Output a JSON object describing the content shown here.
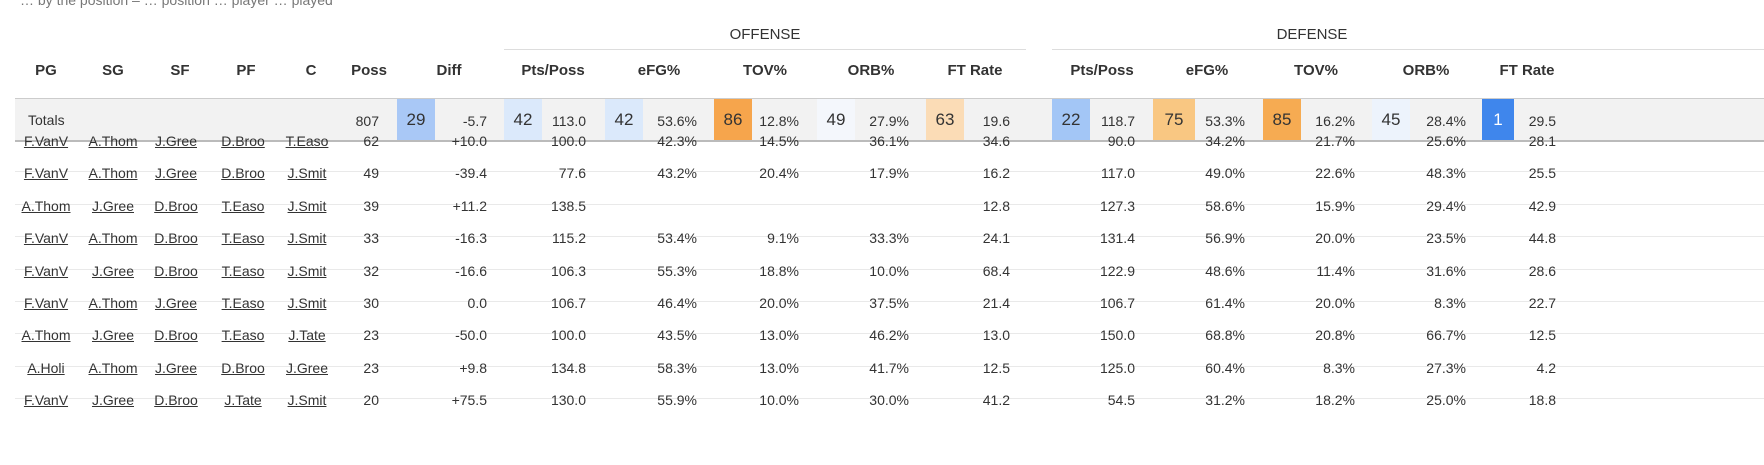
{
  "intro_text": "… by the position – … position … player … played",
  "groups": {
    "offense": "OFFENSE",
    "defense": "DEFENSE"
  },
  "headers": {
    "pg": "PG",
    "sg": "SG",
    "sf": "SF",
    "pf": "PF",
    "c": "C",
    "poss": "Poss",
    "diff": "Diff",
    "o_pts": "Pts/Poss",
    "o_efg": "eFG%",
    "o_tov": "TOV%",
    "o_orb": "ORB%",
    "o_ft": "FT Rate",
    "d_pts": "Pts/Poss",
    "d_efg": "eFG%",
    "d_tov": "TOV%",
    "d_orb": "ORB%",
    "d_ft": "FT Rate"
  },
  "totals": {
    "label": "Totals",
    "poss": "807",
    "diff_rank": "29",
    "diff": "-5.7",
    "o_pts_rank": "42",
    "o_pts": "113.0",
    "o_efg_rank": "42",
    "o_efg": "53.6%",
    "o_tov_rank": "86",
    "o_tov": "12.8%",
    "o_orb_rank": "49",
    "o_orb": "27.9%",
    "o_ft_rank": "63",
    "o_ft": "19.6",
    "d_pts_rank": "22",
    "d_pts": "118.7",
    "d_efg_rank": "75",
    "d_efg": "53.3%",
    "d_tov_rank": "85",
    "d_tov": "16.2%",
    "d_orb_rank": "45",
    "d_orb": "28.4%",
    "d_ft_rank": "1",
    "d_ft": "29.5"
  },
  "rank_colors": {
    "diff": "#a9c8f6",
    "o_pts": "#dbe9fb",
    "o_efg": "#dbe9fb",
    "o_tov": "#f6a54c",
    "o_orb": "#f4f7fc",
    "o_ft": "#fbdcb6",
    "d_pts": "#a3c6f6",
    "d_efg": "#f9c782",
    "d_tov": "#f6ab52",
    "d_orb": "#edf3fc",
    "d_ft": "#3f86ec"
  },
  "rows": [
    {
      "pg": "F.VanV",
      "sg": "A.Thom",
      "sf": "J.Gree",
      "pf": "D.Broo",
      "c": "T.Easo",
      "poss": "62",
      "diff": "+10.0",
      "o_pts": "100.0",
      "o_efg": "42.3%",
      "o_tov": "14.5%",
      "o_orb": "36.1%",
      "o_ft": "34.6",
      "d_pts": "90.0",
      "d_efg": "34.2%",
      "d_tov": "21.7%",
      "d_orb": "25.6%",
      "d_ft": "28.1"
    },
    {
      "pg": "F.VanV",
      "sg": "A.Thom",
      "sf": "J.Gree",
      "pf": "D.Broo",
      "c": "J.Smit",
      "poss": "49",
      "diff": "-39.4",
      "o_pts": "77.6",
      "o_efg": "43.2%",
      "o_tov": "20.4%",
      "o_orb": "17.9%",
      "o_ft": "16.2",
      "d_pts": "117.0",
      "d_efg": "49.0%",
      "d_tov": "22.6%",
      "d_orb": "48.3%",
      "d_ft": "25.5"
    },
    {
      "pg": "A.Thom",
      "sg": "J.Gree",
      "sf": "D.Broo",
      "pf": "T.Easo",
      "c": "J.Smit",
      "poss": "39",
      "diff": "+11.2",
      "o_pts": "138.5",
      "o_efg": "",
      "o_tov": "",
      "o_orb": "",
      "o_ft": "12.8",
      "d_pts": "127.3",
      "d_efg": "58.6%",
      "d_tov": "15.9%",
      "d_orb": "29.4%",
      "d_ft": "42.9"
    },
    {
      "pg": "F.VanV",
      "sg": "A.Thom",
      "sf": "D.Broo",
      "pf": "T.Easo",
      "c": "J.Smit",
      "poss": "33",
      "diff": "-16.3",
      "o_pts": "115.2",
      "o_efg": "53.4%",
      "o_tov": "9.1%",
      "o_orb": "33.3%",
      "o_ft": "24.1",
      "d_pts": "131.4",
      "d_efg": "56.9%",
      "d_tov": "20.0%",
      "d_orb": "23.5%",
      "d_ft": "44.8"
    },
    {
      "pg": "F.VanV",
      "sg": "J.Gree",
      "sf": "D.Broo",
      "pf": "T.Easo",
      "c": "J.Smit",
      "poss": "32",
      "diff": "-16.6",
      "o_pts": "106.3",
      "o_efg": "55.3%",
      "o_tov": "18.8%",
      "o_orb": "10.0%",
      "o_ft": "68.4",
      "d_pts": "122.9",
      "d_efg": "48.6%",
      "d_tov": "11.4%",
      "d_orb": "31.6%",
      "d_ft": "28.6"
    },
    {
      "pg": "F.VanV",
      "sg": "A.Thom",
      "sf": "J.Gree",
      "pf": "T.Easo",
      "c": "J.Smit",
      "poss": "30",
      "diff": "0.0",
      "o_pts": "106.7",
      "o_efg": "46.4%",
      "o_tov": "20.0%",
      "o_orb": "37.5%",
      "o_ft": "21.4",
      "d_pts": "106.7",
      "d_efg": "61.4%",
      "d_tov": "20.0%",
      "d_orb": "8.3%",
      "d_ft": "22.7"
    },
    {
      "pg": "A.Thom",
      "sg": "J.Gree",
      "sf": "D.Broo",
      "pf": "T.Easo",
      "c": "J.Tate",
      "poss": "23",
      "diff": "-50.0",
      "o_pts": "100.0",
      "o_efg": "43.5%",
      "o_tov": "13.0%",
      "o_orb": "46.2%",
      "o_ft": "13.0",
      "d_pts": "150.0",
      "d_efg": "68.8%",
      "d_tov": "20.8%",
      "d_orb": "66.7%",
      "d_ft": "12.5"
    },
    {
      "pg": "A.Holi",
      "sg": "A.Thom",
      "sf": "J.Gree",
      "pf": "D.Broo",
      "c": "J.Gree",
      "poss": "23",
      "diff": "+9.8",
      "o_pts": "134.8",
      "o_efg": "58.3%",
      "o_tov": "13.0%",
      "o_orb": "41.7%",
      "o_ft": "12.5",
      "d_pts": "125.0",
      "d_efg": "60.4%",
      "d_tov": "8.3%",
      "d_orb": "27.3%",
      "d_ft": "4.2"
    },
    {
      "pg": "F.VanV",
      "sg": "J.Gree",
      "sf": "D.Broo",
      "pf": "J.Tate",
      "c": "J.Smit",
      "poss": "20",
      "diff": "+75.5",
      "o_pts": "130.0",
      "o_efg": "55.9%",
      "o_tov": "10.0%",
      "o_orb": "30.0%",
      "o_ft": "41.2",
      "d_pts": "54.5",
      "d_efg": "31.2%",
      "d_tov": "18.2%",
      "d_orb": "25.0%",
      "d_ft": "18.8"
    }
  ]
}
